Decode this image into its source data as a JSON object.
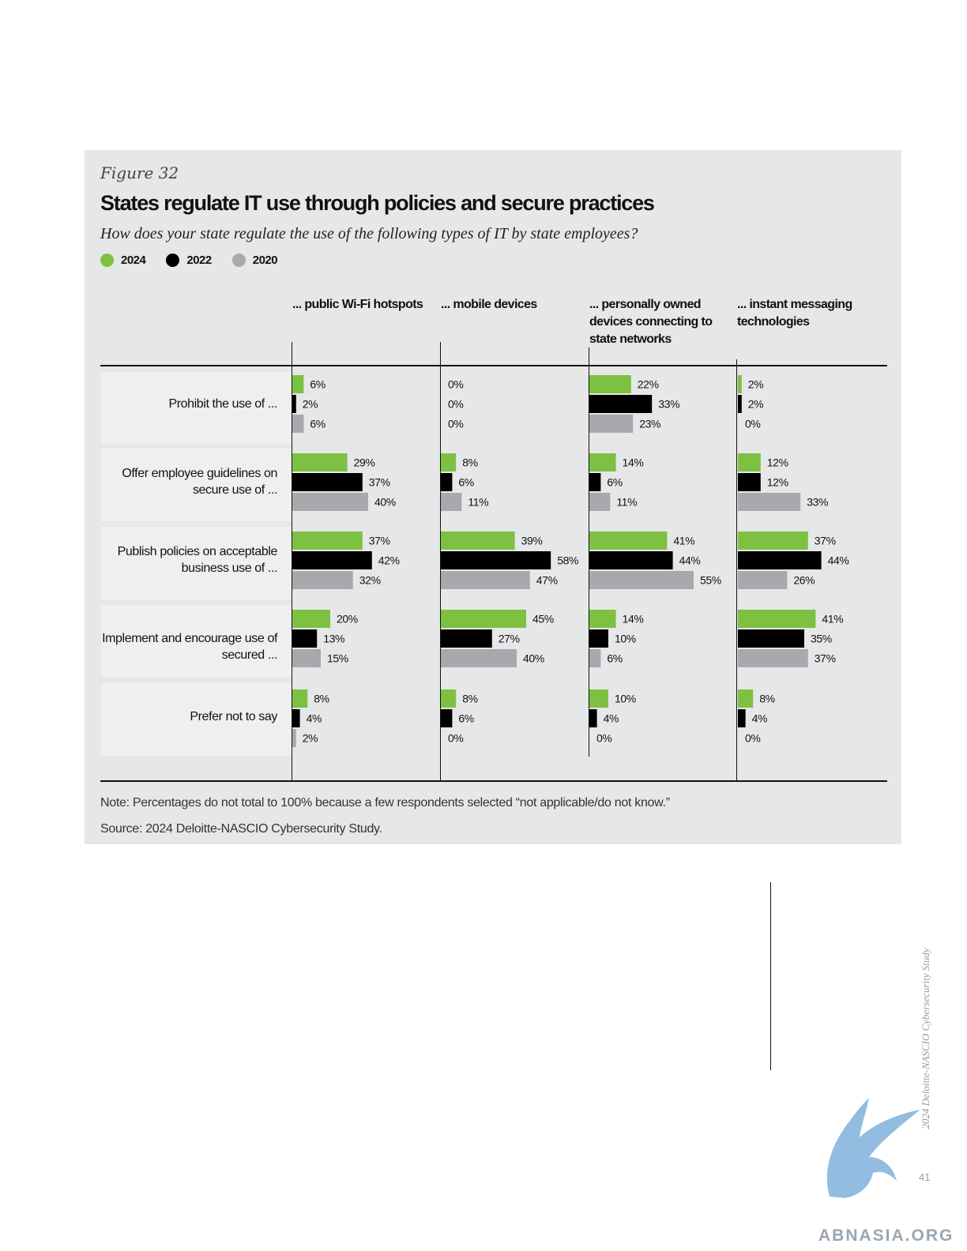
{
  "figure_label": "Figure 32",
  "title": "States regulate IT use through policies and secure practices",
  "subtitle": "How does your state regulate the use of the following types of IT by state employees?",
  "legend": [
    {
      "label": "2024",
      "color": "#7dc142"
    },
    {
      "label": "2022",
      "color": "#000000"
    },
    {
      "label": "2020",
      "color": "#a7a9ac"
    }
  ],
  "notes": {
    "note": "Note: Percentages do not total to 100% because a few respondents selected “not applicable/do not know.”",
    "source": "Source: 2024 Deloitte-NASCIO Cybersecurity Study."
  },
  "footer": {
    "side_text": "2024 Deloitte-NASCIO Cybersecurity Study",
    "page_number": "41",
    "watermark": "ABNASIA.ORG"
  },
  "chart_data": {
    "type": "bar",
    "orientation": "horizontal",
    "title": "States regulate IT use through policies and secure practices",
    "panels": [
      "... public Wi-Fi hotspots",
      "... mobile devices",
      "... personally owned devices connecting to state networks",
      "... instant messaging technologies"
    ],
    "categories": [
      "Prohibit the use of ...",
      "Offer employee guidelines on secure use of ...",
      "Publish policies on acceptable business use of ...",
      "Implement and encourage use of secured ...",
      "Prefer not to say"
    ],
    "series": [
      {
        "name": "2024",
        "color": "#7dc142",
        "values": [
          [
            6,
            0,
            22,
            2
          ],
          [
            29,
            8,
            14,
            12
          ],
          [
            37,
            39,
            41,
            37
          ],
          [
            20,
            45,
            14,
            41
          ],
          [
            8,
            8,
            10,
            8
          ]
        ]
      },
      {
        "name": "2022",
        "color": "#000000",
        "values": [
          [
            2,
            0,
            33,
            2
          ],
          [
            37,
            6,
            6,
            12
          ],
          [
            42,
            58,
            44,
            44
          ],
          [
            13,
            27,
            10,
            35
          ],
          [
            4,
            6,
            4,
            4
          ]
        ]
      },
      {
        "name": "2020",
        "color": "#a7a9ac",
        "values": [
          [
            6,
            0,
            23,
            0
          ],
          [
            40,
            11,
            11,
            33
          ],
          [
            32,
            47,
            55,
            26
          ],
          [
            15,
            40,
            6,
            37
          ],
          [
            2,
            0,
            0,
            0
          ]
        ]
      }
    ],
    "value_suffix": "%",
    "legend_position": "top-left",
    "grid": false
  }
}
